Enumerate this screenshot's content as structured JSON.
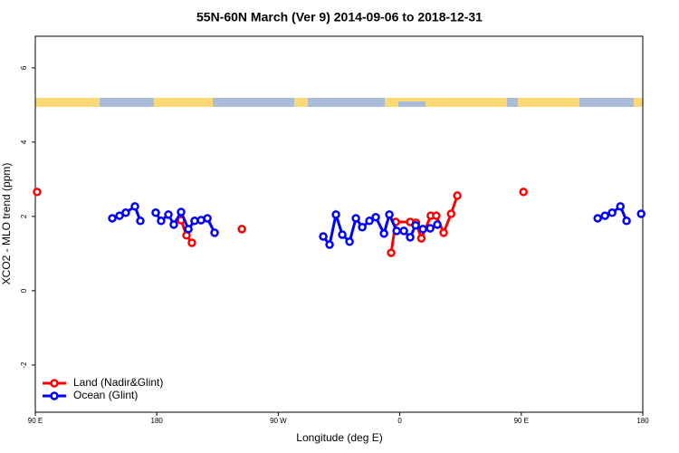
{
  "chart_data": {
    "type": "line",
    "title": "55N-60N March (Ver 9)   2014-09-06 to 2018-12-31",
    "x_label": "Longitude (deg E)",
    "y_label": "XCO2 - MLO trend (ppm)",
    "xlim": [
      90,
      540
    ],
    "xticks": [
      {
        "value": 90,
        "label": "90 E"
      },
      {
        "value": 180,
        "label": "180"
      },
      {
        "value": 270,
        "label": "90 W"
      },
      {
        "value": 360,
        "label": "0"
      },
      {
        "value": 450,
        "label": "90 E"
      },
      {
        "value": 540,
        "label": "180"
      }
    ],
    "ylim": [
      -3.27,
      6.85
    ],
    "yticks": [
      -2,
      0,
      2,
      4,
      6
    ],
    "legend": "bottom-left",
    "series": [
      {
        "name": "Land (Nadir&Glint)",
        "color": "#ff0000",
        "x": [
          91.3,
          null,
          198,
          202,
          206,
          null,
          243,
          null,
          353.6,
          357,
          367.7,
          372,
          376,
          383,
          387,
          392.5,
          398,
          402.6,
          null,
          451.6
        ],
        "values": [
          2.66,
          null,
          1.9,
          1.49,
          1.29,
          null,
          1.66,
          null,
          1.02,
          1.85,
          1.85,
          1.83,
          1.41,
          2.02,
          2.02,
          1.56,
          2.07,
          2.56,
          null,
          2.66
        ]
      },
      {
        "name": "Ocean (Glint)",
        "color": "#0000ff",
        "x": [
          147,
          152.4,
          157,
          163.8,
          167.8,
          null,
          179.2,
          183.2,
          188.6,
          192.6,
          198,
          203.4,
          208,
          212.8,
          217.5,
          222.8,
          null,
          303.3,
          308,
          312.7,
          317.4,
          322.8,
          327.5,
          332.2,
          337.5,
          342.2,
          348.3,
          352.3,
          357.7,
          363,
          367.7,
          371.7,
          377.1,
          382.5,
          387.8,
          null,
          506.6,
          512,
          517.3,
          523.4,
          528,
          null,
          538.8
        ],
        "values": [
          1.95,
          2.02,
          2.1,
          2.27,
          1.88,
          null,
          2.1,
          1.88,
          2.05,
          1.78,
          2.12,
          1.66,
          1.88,
          1.9,
          1.95,
          1.56,
          null,
          1.46,
          1.24,
          2.05,
          1.51,
          1.32,
          1.95,
          1.71,
          1.88,
          1.98,
          1.54,
          2.05,
          1.61,
          1.61,
          1.44,
          1.76,
          1.66,
          1.68,
          1.78,
          null,
          1.95,
          2.02,
          2.1,
          2.27,
          1.88,
          null,
          2.07
        ]
      }
    ]
  }
}
